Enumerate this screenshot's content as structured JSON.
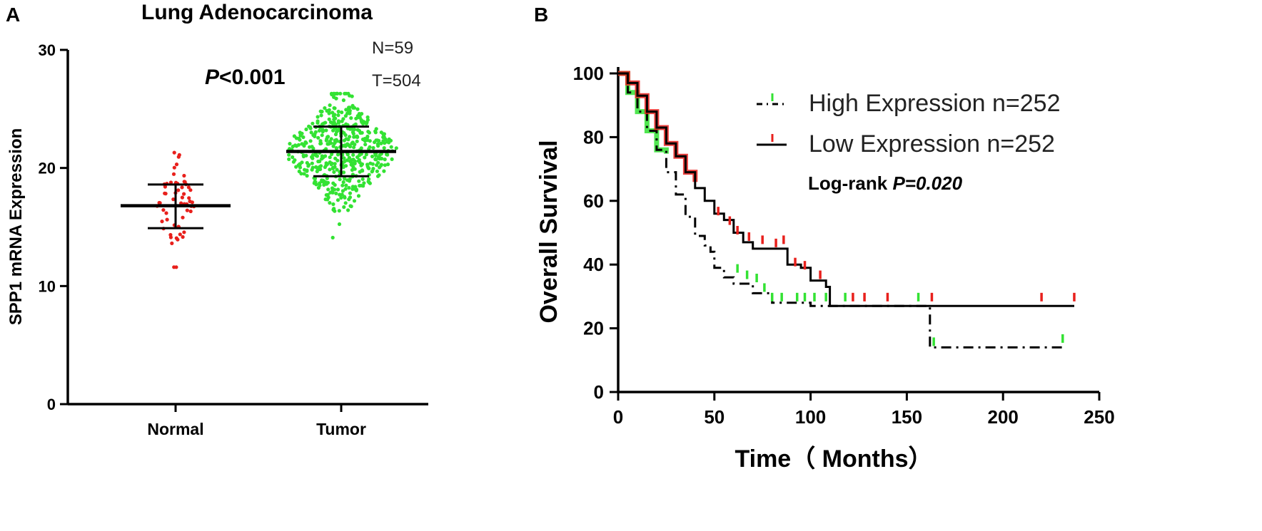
{
  "panel_a_letter": "A",
  "panel_b_letter": "B",
  "colors": {
    "normal": "#e8201c",
    "tumor": "#33e233",
    "high": "#33e233",
    "low": "#e8201c",
    "axis": "#000000"
  },
  "chart_data": [
    {
      "type": "scatter",
      "kind": "dot-plot",
      "title": "Lung Adenocarcinoma",
      "xlabel": "",
      "ylabel": "SPP1 mRNA Expression",
      "ylim": [
        0,
        30
      ],
      "yticks": [
        0,
        10,
        20,
        30
      ],
      "categories": [
        "Normal",
        "Tumor"
      ],
      "annotation_p_prefix": "P",
      "annotation_p_suffix": "<0.001",
      "n_label": "N=59",
      "t_label": "T=504",
      "groups": [
        {
          "name": "Normal",
          "n": 59,
          "mean": 16.8,
          "sd_low": 14.9,
          "sd_high": 18.6,
          "min": 11.6,
          "max": 21.3,
          "spread": 1.9
        },
        {
          "name": "Tumor",
          "n": 504,
          "mean": 21.4,
          "sd_low": 19.3,
          "sd_high": 23.5,
          "min": 14.1,
          "max": 26.3,
          "spread": 2.1
        }
      ]
    },
    {
      "type": "line",
      "kind": "kaplan-meier",
      "xlabel": "Time（  Months）",
      "ylabel": "Overall Survival",
      "xlim": [
        0,
        250
      ],
      "ylim": [
        0,
        100
      ],
      "xticks": [
        0,
        50,
        100,
        150,
        200,
        250
      ],
      "yticks": [
        0,
        20,
        40,
        60,
        80,
        100
      ],
      "logrank_prefix": "Log-rank ",
      "logrank_p": "P=0.020",
      "series": [
        {
          "name": "High Expression n=252",
          "style": "dash-dot",
          "points": [
            [
              0,
              100
            ],
            [
              5,
              94
            ],
            [
              10,
              88
            ],
            [
              15,
              82
            ],
            [
              20,
              76
            ],
            [
              25,
              69
            ],
            [
              30,
              62
            ],
            [
              35,
              55
            ],
            [
              40,
              49
            ],
            [
              45,
              46
            ],
            [
              48,
              44
            ],
            [
              50,
              39
            ],
            [
              55,
              36
            ],
            [
              60,
              34
            ],
            [
              70,
              31
            ],
            [
              80,
              28
            ],
            [
              100,
              27
            ],
            [
              160,
              27
            ],
            [
              162,
              27
            ],
            [
              162,
              14
            ],
            [
              232,
              14
            ]
          ],
          "censors": [
            [
              62,
              37
            ],
            [
              67,
              35
            ],
            [
              72,
              34
            ],
            [
              76,
              31
            ],
            [
              80,
              28
            ],
            [
              85,
              28
            ],
            [
              93,
              28
            ],
            [
              97,
              28
            ],
            [
              102,
              28
            ],
            [
              108,
              28
            ],
            [
              118,
              28
            ],
            [
              156,
              28
            ],
            [
              164,
              14
            ],
            [
              231,
              15
            ]
          ]
        },
        {
          "name": "Low Expression n=252",
          "style": "solid",
          "points": [
            [
              0,
              100
            ],
            [
              5,
              97
            ],
            [
              10,
              93
            ],
            [
              15,
              88
            ],
            [
              20,
              83
            ],
            [
              25,
              78
            ],
            [
              30,
              74
            ],
            [
              35,
              69
            ],
            [
              40,
              64
            ],
            [
              45,
              60
            ],
            [
              50,
              56
            ],
            [
              55,
              54
            ],
            [
              60,
              50
            ],
            [
              65,
              47
            ],
            [
              70,
              45
            ],
            [
              85,
              45
            ],
            [
              88,
              40
            ],
            [
              95,
              39
            ],
            [
              100,
              35
            ],
            [
              108,
              33
            ],
            [
              110,
              27
            ],
            [
              237,
              27
            ]
          ],
          "censors": [
            [
              52,
              55
            ],
            [
              58,
              52
            ],
            [
              62,
              49
            ],
            [
              68,
              47
            ],
            [
              75,
              46
            ],
            [
              82,
              45
            ],
            [
              86,
              46
            ],
            [
              92,
              39
            ],
            [
              97,
              38
            ],
            [
              105,
              35
            ],
            [
              122,
              28
            ],
            [
              128,
              28
            ],
            [
              140,
              28
            ],
            [
              163,
              28
            ],
            [
              220,
              28
            ],
            [
              237,
              28
            ]
          ]
        }
      ]
    }
  ]
}
